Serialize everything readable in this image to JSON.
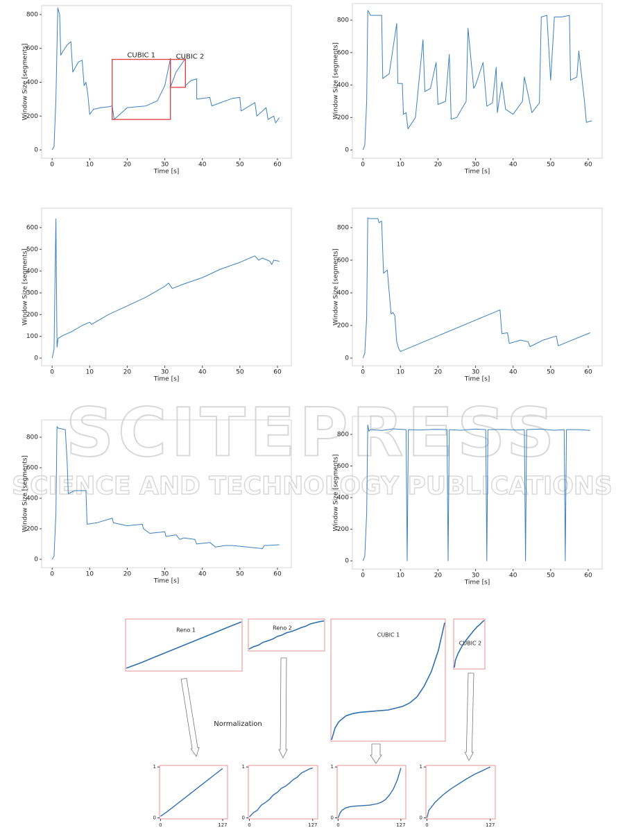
{
  "chart_data": [
    {
      "type": "line",
      "ylabel": "Window Size [segments]",
      "xlabel": "Time [s]",
      "color": "#3b7fbf",
      "frame_color": "#cccccc",
      "xlim": [
        -2.8,
        63.7
      ],
      "ylim": [
        -49,
        853
      ],
      "xticks": [
        0,
        10,
        20,
        30,
        40,
        50,
        60
      ],
      "yticks": [
        0,
        200,
        400,
        600,
        800
      ],
      "x": [
        0,
        0.5,
        1,
        1.5,
        2,
        2.3,
        2.8,
        4,
        5,
        5.5,
        6,
        7,
        8,
        8.5,
        9,
        9.5,
        10,
        11,
        13,
        15,
        16,
        16.5,
        20,
        25,
        28,
        30,
        31.5,
        31.5,
        33,
        35.5,
        35.5,
        37,
        38.5,
        38.5,
        42,
        42.5,
        48,
        50,
        50.3,
        54,
        54.5,
        57,
        57.5,
        59,
        59.5,
        60.5
      ],
      "values": [
        0,
        20,
        300,
        840,
        800,
        560,
        580,
        620,
        640,
        460,
        480,
        520,
        530,
        380,
        400,
        330,
        210,
        240,
        250,
        255,
        260,
        180,
        250,
        260,
        290,
        380,
        540,
        370,
        460,
        540,
        380,
        410,
        420,
        300,
        310,
        260,
        305,
        310,
        230,
        280,
        200,
        250,
        180,
        200,
        160,
        190
      ],
      "annotations": [
        {
          "text": "CUBIC 1",
          "x": [
            16,
            31.5
          ],
          "y": [
            180,
            535
          ],
          "color": "#e03c3c"
        },
        {
          "text": "CUBIC 2",
          "x": [
            31.5,
            35.5
          ],
          "y": [
            370,
            535
          ],
          "color": "#e03c3c"
        }
      ]
    },
    {
      "type": "line",
      "ylabel": "Window Size [segments]",
      "xlabel": "Time [s]",
      "color": "#3b7fbf",
      "frame_color": "#cccccc",
      "xlim": [
        -2.8,
        63.7
      ],
      "ylim": [
        -51,
        903
      ],
      "xticks": [
        0,
        10,
        20,
        30,
        40,
        50,
        60
      ],
      "yticks": [
        0,
        200,
        400,
        600,
        800
      ],
      "x": [
        0,
        0.5,
        1,
        1.3,
        1.6,
        2,
        4,
        5,
        5.3,
        7,
        9,
        9.3,
        10.5,
        10.8,
        11.5,
        12,
        12.3,
        14,
        16,
        16.5,
        18,
        19.5,
        20,
        22,
        23,
        23.5,
        25,
        27.5,
        28,
        29.5,
        30,
        32,
        33,
        34.5,
        35.5,
        35.8,
        37,
        38,
        40,
        42.5,
        43,
        45,
        47,
        47.5,
        49,
        50,
        51,
        53,
        55,
        55.3,
        57,
        57.5,
        59,
        59.5,
        61
      ],
      "values": [
        0,
        30,
        300,
        860,
        850,
        830,
        830,
        830,
        440,
        470,
        780,
        410,
        410,
        220,
        230,
        130,
        140,
        200,
        680,
        360,
        380,
        540,
        280,
        300,
        590,
        190,
        200,
        300,
        750,
        380,
        400,
        540,
        270,
        290,
        510,
        230,
        420,
        250,
        220,
        300,
        450,
        230,
        290,
        820,
        830,
        430,
        820,
        820,
        830,
        430,
        450,
        610,
        300,
        170,
        180
      ]
    },
    {
      "type": "line",
      "ylabel": "Window Size [segments]",
      "xlabel": "Time [s]",
      "color": "#3b7fbf",
      "frame_color": "#cccccc",
      "xlim": [
        -2.8,
        63.7
      ],
      "ylim": [
        -35,
        689
      ],
      "xticks": [
        0,
        10,
        20,
        30,
        40,
        50,
        60
      ],
      "yticks": [
        0,
        100,
        200,
        300,
        400,
        500,
        600
      ],
      "x": [
        0,
        0.5,
        1,
        1.3,
        1.6,
        2,
        2.5,
        3,
        5,
        8,
        10,
        10.5,
        15,
        20,
        25,
        30,
        31,
        32,
        35,
        40,
        45,
        50,
        54,
        55,
        56,
        58,
        58.5,
        59,
        60.5
      ],
      "values": [
        0,
        40,
        640,
        50,
        90,
        95,
        100,
        105,
        120,
        150,
        165,
        155,
        200,
        240,
        280,
        330,
        345,
        320,
        340,
        370,
        410,
        440,
        470,
        450,
        460,
        445,
        430,
        450,
        445
      ]
    },
    {
      "type": "line",
      "ylabel": "Window Size [segments]",
      "xlabel": "Time [s]",
      "color": "#3b7fbf",
      "frame_color": "#cccccc",
      "xlim": [
        -2.8,
        63.7
      ],
      "ylim": [
        -47,
        919
      ],
      "xticks": [
        0,
        10,
        20,
        30,
        40,
        50,
        60
      ],
      "yticks": [
        0,
        200,
        400,
        600,
        800
      ],
      "x": [
        0,
        0.5,
        1,
        1.3,
        1.6,
        4,
        4.3,
        5,
        5.5,
        6,
        6.5,
        7.5,
        8,
        8.5,
        9,
        9.5,
        10,
        10.5,
        36.5,
        37,
        38.5,
        39,
        42,
        44,
        44.5,
        48,
        51.5,
        52,
        52.5,
        60.5
      ],
      "values": [
        0,
        30,
        250,
        860,
        855,
        855,
        830,
        840,
        520,
        530,
        540,
        270,
        280,
        260,
        100,
        60,
        40,
        45,
        295,
        150,
        155,
        90,
        110,
        100,
        70,
        110,
        135,
        75,
        80,
        155
      ]
    },
    {
      "type": "line",
      "ylabel": "Window Size [segments]",
      "xlabel": "Time [s]",
      "color": "#3b7fbf",
      "frame_color": "#cccccc",
      "xlim": [
        -2.8,
        63.7
      ],
      "ylim": [
        -55,
        914
      ],
      "xticks": [
        0,
        10,
        20,
        30,
        40,
        50,
        60
      ],
      "yticks": [
        0,
        200,
        400,
        600,
        800
      ],
      "x": [
        0,
        0.5,
        1,
        1.3,
        1.6,
        3.5,
        4,
        4.3,
        6,
        9,
        9.3,
        12,
        16,
        16.3,
        20,
        24,
        24.3,
        26,
        30,
        30.3,
        33,
        34,
        35,
        38,
        38.5,
        42,
        43.5,
        46,
        48,
        52,
        56,
        56.5,
        60.5
      ],
      "values": [
        0,
        20,
        300,
        870,
        860,
        850,
        640,
        430,
        450,
        450,
        230,
        240,
        270,
        240,
        220,
        230,
        200,
        170,
        180,
        150,
        160,
        130,
        140,
        130,
        100,
        110,
        80,
        90,
        90,
        80,
        70,
        90,
        95
      ]
    },
    {
      "type": "line",
      "ylabel": "Window Size [segments]",
      "xlabel": "Time [s]",
      "color": "#3b7fbf",
      "frame_color": "#cccccc",
      "xlim": [
        -2.8,
        63.7
      ],
      "ylim": [
        -52,
        914
      ],
      "xticks": [
        0,
        10,
        20,
        30,
        40,
        50,
        60
      ],
      "yticks": [
        0,
        200,
        400,
        600,
        800
      ],
      "x": [
        0,
        0.5,
        1,
        1.3,
        1.6,
        2,
        5,
        8,
        11.5,
        11.8,
        12.1,
        15,
        19,
        22.4,
        22.7,
        23,
        26,
        30,
        32.7,
        33,
        33.3,
        37,
        41,
        43,
        43.3,
        43.6,
        47,
        51,
        53.6,
        53.9,
        54.2,
        58,
        60.5
      ],
      "values": [
        0,
        30,
        300,
        860,
        820,
        830,
        825,
        835,
        830,
        0,
        830,
        828,
        832,
        830,
        0,
        830,
        826,
        834,
        830,
        0,
        830,
        832,
        828,
        830,
        0,
        830,
        834,
        826,
        830,
        0,
        830,
        830,
        825
      ]
    },
    {
      "type": "line",
      "color": "#2f6fae",
      "frame_color": "#e89090",
      "xlim": [
        -2,
        137
      ],
      "ylim": [
        -0.02,
        1.03
      ],
      "xticks": [
        0,
        127
      ],
      "yticks": [
        0,
        1
      ],
      "x": [
        0,
        16,
        32,
        48,
        64,
        80,
        96,
        112,
        127
      ],
      "values": [
        0.03,
        0.14,
        0.26,
        0.38,
        0.5,
        0.62,
        0.74,
        0.86,
        0.97
      ]
    },
    {
      "type": "line",
      "color": "#2f6fae",
      "frame_color": "#e89090",
      "xlim": [
        -2,
        137
      ],
      "ylim": [
        -0.02,
        1.03
      ],
      "xticks": [
        0,
        127
      ],
      "yticks": [
        0,
        1
      ],
      "x": [
        0,
        8,
        16,
        24,
        32,
        40,
        48,
        56,
        64,
        72,
        80,
        88,
        96,
        104,
        112,
        120,
        127
      ],
      "values": [
        0.02,
        0.1,
        0.15,
        0.25,
        0.3,
        0.36,
        0.45,
        0.5,
        0.58,
        0.62,
        0.68,
        0.75,
        0.8,
        0.88,
        0.92,
        0.96,
        0.98
      ]
    },
    {
      "type": "line",
      "color": "#2f6fae",
      "frame_color": "#e89090",
      "xlim": [
        -2,
        137
      ],
      "ylim": [
        -0.02,
        1.03
      ],
      "xticks": [
        0,
        127
      ],
      "yticks": [
        0,
        1
      ],
      "x": [
        0,
        4,
        8,
        16,
        24,
        32,
        48,
        64,
        80,
        88,
        96,
        104,
        112,
        120,
        127
      ],
      "values": [
        0,
        0.1,
        0.15,
        0.2,
        0.22,
        0.23,
        0.24,
        0.25,
        0.28,
        0.31,
        0.36,
        0.45,
        0.57,
        0.75,
        0.98
      ]
    },
    {
      "type": "line",
      "color": "#2f6fae",
      "frame_color": "#e89090",
      "xlim": [
        -2,
        137
      ],
      "ylim": [
        -0.02,
        1.03
      ],
      "xticks": [
        0,
        127
      ],
      "yticks": [
        0,
        1
      ],
      "x": [
        0,
        4,
        8,
        16,
        32,
        48,
        64,
        80,
        96,
        112,
        120,
        127
      ],
      "values": [
        0,
        0.15,
        0.2,
        0.3,
        0.45,
        0.57,
        0.67,
        0.77,
        0.86,
        0.93,
        0.97,
        1
      ]
    }
  ],
  "diagram": {
    "labels": [
      "Reno 1",
      "Reno 2",
      "CUBIC 1",
      "CUBIC 2"
    ],
    "normalization": "Normalization"
  },
  "watermark": {
    "title": "SCITEPRESS",
    "subtitle": "SCIENCE AND TECHNOLOGY PUBLICATIONS"
  }
}
